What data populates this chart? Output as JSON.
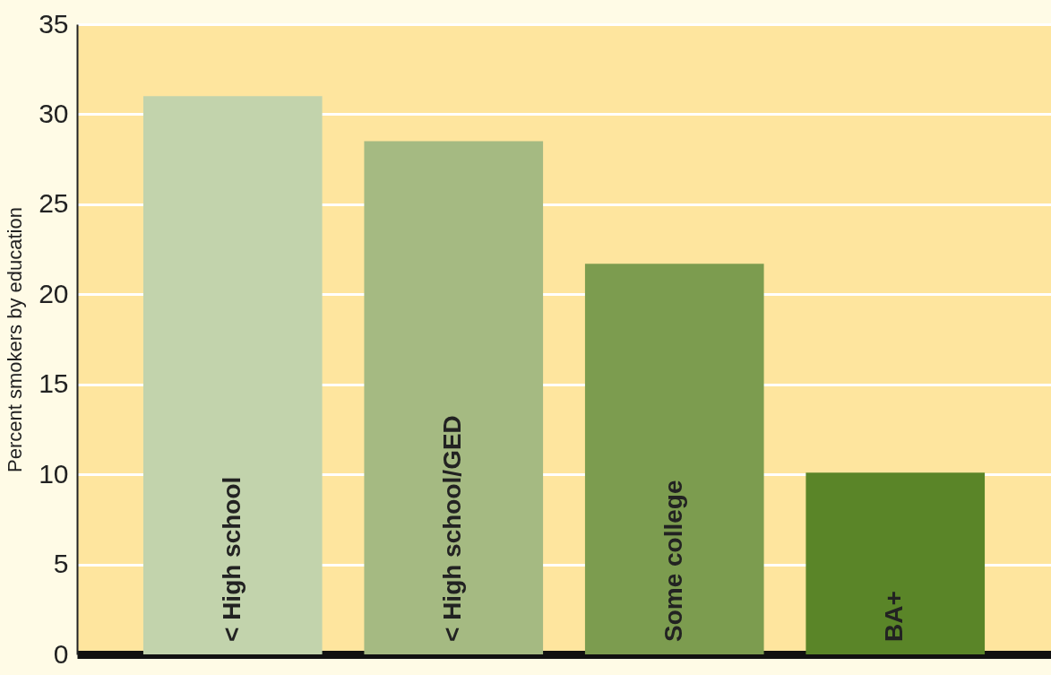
{
  "chart_data": {
    "type": "bar",
    "ylabel": "Percent smokers by education",
    "categories": [
      "< High school",
      "< High school/GED",
      "Some college",
      "BA+"
    ],
    "values": [
      31.0,
      28.5,
      21.7,
      10.1
    ],
    "colors": [
      "#c2d3ac",
      "#a5ba82",
      "#7c9c4f",
      "#5a8528"
    ],
    "ylim": [
      0,
      35
    ],
    "yticks": [
      0,
      5,
      10,
      15,
      20,
      25,
      30,
      35
    ],
    "grid": "y",
    "tick_labels": "y"
  }
}
